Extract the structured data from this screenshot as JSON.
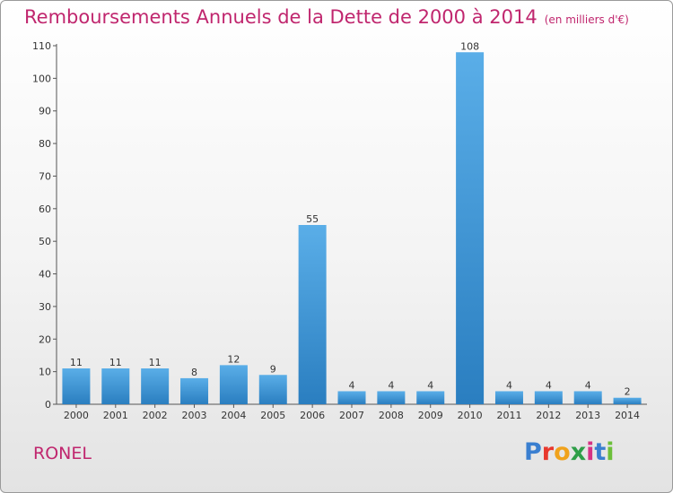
{
  "chart_data": {
    "type": "bar",
    "title": "Remboursements Annuels de la Dette de 2000 à 2014",
    "unit_label": "(en milliers d'€)",
    "categories": [
      "2000",
      "2001",
      "2002",
      "2003",
      "2004",
      "2005",
      "2006",
      "2007",
      "2008",
      "2009",
      "2010",
      "2011",
      "2012",
      "2013",
      "2014"
    ],
    "values": [
      11,
      11,
      11,
      8,
      12,
      9,
      55,
      4,
      4,
      4,
      108,
      4,
      4,
      4,
      2
    ],
    "ylim": [
      0,
      110
    ],
    "yticks": [
      0,
      10,
      20,
      30,
      40,
      50,
      60,
      70,
      80,
      90,
      100,
      110
    ],
    "grid": false,
    "bar_color": "#3a93d6",
    "title_color": "#c0266e"
  },
  "footer": {
    "place_name": "RONEL",
    "logo_text": "Proxiti",
    "logo_colors": [
      "#3a7fd0",
      "#e8382d",
      "#f0a21c",
      "#2e9e48",
      "#d63384",
      "#3a7fd0",
      "#6cbf3a"
    ]
  }
}
